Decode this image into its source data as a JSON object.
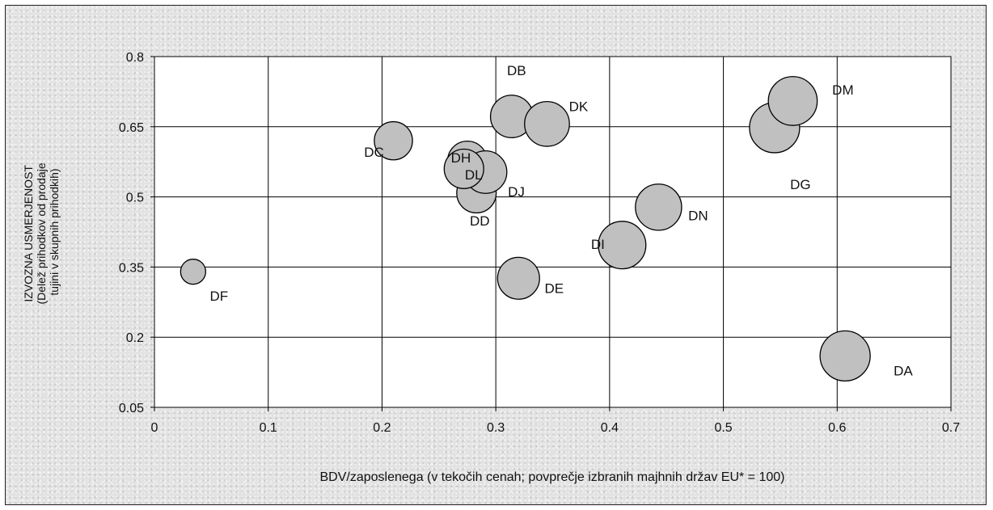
{
  "chart_data": {
    "type": "scatter",
    "subtype": "bubble",
    "xlabel": "BDV/zaposlenega (v tekočih cenah; povprečje izbranih majhnih držav EU* = 100)",
    "ylabel_lines": [
      "IZVOZNA USMERJENOST",
      "(Delež prihodkov od prodaje",
      "tujini v skupnih prihodkih)"
    ],
    "xlim": [
      0,
      0.7
    ],
    "ylim": [
      0.05,
      0.8
    ],
    "xticks": [
      0,
      0.1,
      0.2,
      0.3,
      0.4,
      0.5,
      0.6,
      0.7
    ],
    "yticks": [
      0.05,
      0.2,
      0.35,
      0.5,
      0.65,
      0.8
    ],
    "grid": true,
    "legend": "none",
    "bubble_color": "#c0c0c0",
    "plot_background": "#ffffff",
    "points": [
      {
        "label": "DA",
        "x": 0.607,
        "y": 0.16,
        "size": 1.0
      },
      {
        "label": "DB",
        "x": 0.314,
        "y": 0.672,
        "size": 0.72
      },
      {
        "label": "DC",
        "x": 0.21,
        "y": 0.62,
        "size": 0.58
      },
      {
        "label": "DD",
        "x": 0.283,
        "y": 0.508,
        "size": 0.62
      },
      {
        "label": "DE",
        "x": 0.32,
        "y": 0.326,
        "size": 0.7
      },
      {
        "label": "DF",
        "x": 0.034,
        "y": 0.34,
        "size": 0.25
      },
      {
        "label": "DG",
        "x": 0.545,
        "y": 0.648,
        "size": 1.0
      },
      {
        "label": "DH",
        "x": 0.275,
        "y": 0.577,
        "size": 0.62
      },
      {
        "label": "DI",
        "x": 0.411,
        "y": 0.397,
        "size": 0.9
      },
      {
        "label": "DJ",
        "x": 0.291,
        "y": 0.553,
        "size": 0.72
      },
      {
        "label": "DK",
        "x": 0.345,
        "y": 0.656,
        "size": 0.8
      },
      {
        "label": "DL",
        "x": 0.272,
        "y": 0.56,
        "size": 0.62
      },
      {
        "label": "DM",
        "x": 0.561,
        "y": 0.705,
        "size": 0.95
      },
      {
        "label": "DN",
        "x": 0.443,
        "y": 0.478,
        "size": 0.85
      }
    ]
  }
}
